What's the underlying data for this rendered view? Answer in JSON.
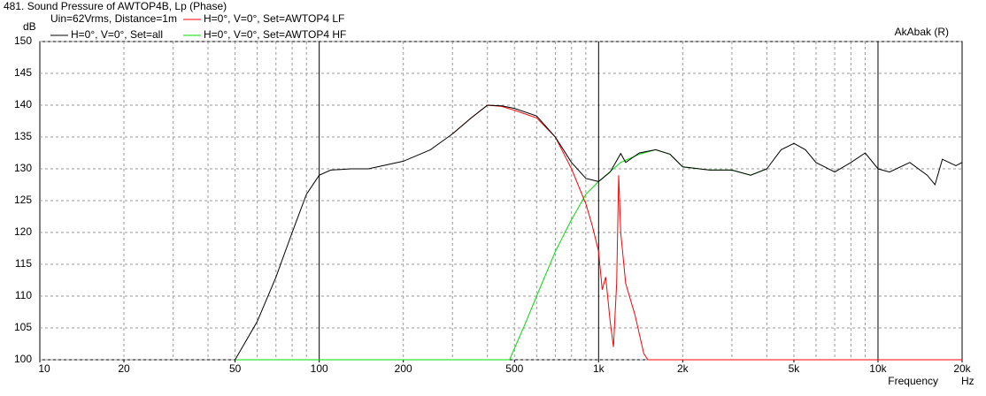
{
  "chart_data": {
    "type": "line",
    "title": "481. Sound Pressure of AWTOP4B, Lp (Phase)",
    "subtitle": "Uin=62Vrms, Distance=1m",
    "credit": "AkAbak (R)",
    "ylabel": "dB",
    "xlabel": "Frequency",
    "xunit": "Hz",
    "xscale": "log",
    "xlim": [
      10,
      20000
    ],
    "ylim": [
      100,
      150
    ],
    "xticks": [
      10,
      20,
      50,
      100,
      200,
      500,
      {
        "value": 1000,
        "label": "1k"
      },
      {
        "value": 2000,
        "label": "2k"
      },
      {
        "value": 5000,
        "label": "5k"
      },
      {
        "value": 10000,
        "label": "10k"
      },
      {
        "value": 20000,
        "label": "20k"
      }
    ],
    "yticks": [
      100,
      105,
      110,
      115,
      120,
      125,
      130,
      135,
      140,
      145,
      150
    ],
    "xgrid": [
      20,
      30,
      40,
      50,
      60,
      70,
      80,
      90,
      100,
      200,
      300,
      400,
      500,
      600,
      700,
      800,
      900,
      1000,
      2000,
      3000,
      4000,
      5000,
      6000,
      7000,
      8000,
      9000,
      10000
    ],
    "grid": true,
    "series": [
      {
        "name": "H=0°, V=0°, Set=all",
        "color": "#000000",
        "x": [
          50,
          60,
          70,
          80,
          90,
          100,
          110,
          130,
          150,
          200,
          250,
          300,
          350,
          400,
          450,
          500,
          600,
          700,
          800,
          900,
          1000,
          1100,
          1200,
          1250,
          1400,
          1600,
          1800,
          2000,
          2500,
          3000,
          3500,
          4000,
          4500,
          5000,
          5500,
          6000,
          7000,
          8000,
          9000,
          10000,
          11000,
          13000,
          15000,
          16000,
          17000,
          19000,
          20000
        ],
        "values": [
          100,
          106,
          113,
          120,
          126,
          129,
          129.8,
          130,
          130,
          131.2,
          133,
          135.5,
          138,
          140,
          139.9,
          139.5,
          138.3,
          135,
          131,
          128.5,
          128,
          129.5,
          132.4,
          131,
          132.5,
          133,
          132.3,
          130.3,
          129.8,
          129.8,
          129,
          130,
          133,
          134,
          133,
          131,
          129.5,
          131,
          132.5,
          130,
          129.5,
          131,
          129,
          127.5,
          131.5,
          130.5,
          131
        ]
      },
      {
        "name": "H=0°, V=0°, Set=AWTOP4 LF",
        "color": "#ff0000",
        "x": [
          300,
          350,
          400,
          450,
          500,
          600,
          700,
          800,
          900,
          950,
          1000,
          1030,
          1060,
          1100,
          1130,
          1160,
          1180,
          1200,
          1250,
          1350,
          1450,
          1500,
          20000
        ],
        "values": [
          135.5,
          138,
          140,
          139.8,
          139.2,
          138,
          135,
          130,
          124.5,
          121,
          117,
          111,
          113,
          106,
          102,
          112,
          129,
          120,
          112,
          107,
          101,
          100,
          100
        ]
      },
      {
        "name": "H=0°, V=0°, Set=AWTOP4 HF",
        "color": "#00dd00",
        "x": [
          50,
          480,
          550,
          600,
          700,
          800,
          900,
          1000,
          1200,
          1400,
          1600,
          1800,
          2000,
          2500,
          3000,
          3500,
          4000
        ],
        "values": [
          100,
          100,
          106,
          110,
          117,
          122,
          126,
          128,
          131,
          132.3,
          133,
          132.3,
          130.3,
          129.8,
          129.8,
          129,
          130
        ]
      }
    ]
  }
}
